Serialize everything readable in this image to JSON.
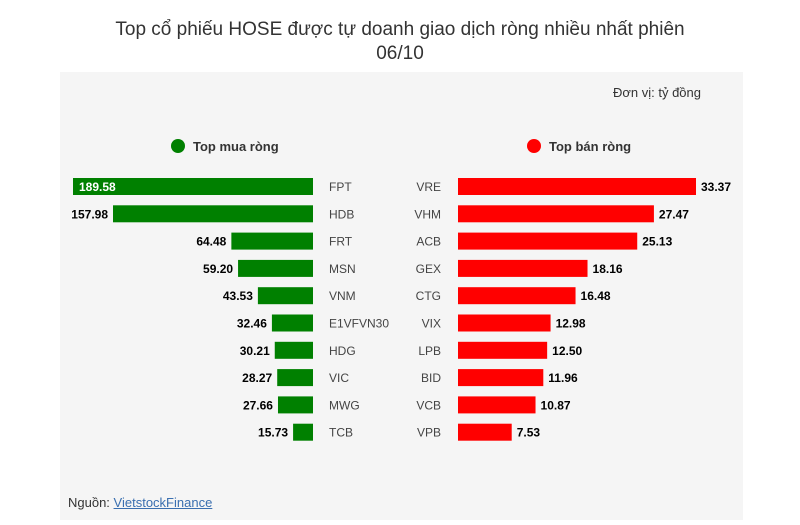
{
  "title_line1": "Top cổ phiếu HOSE được tự doanh giao dịch ròng nhiều nhất phiên",
  "title_line2": "06/10",
  "unit": "Đơn vị: tỷ đồng",
  "source_label": "Nguồn:",
  "source_link": "VietstockFinance",
  "colors": {
    "buy": "#008000",
    "sell": "#ff0000",
    "panel": "#f5f5f5"
  },
  "chart_data": {
    "type": "bar",
    "orientation": "horizontal",
    "xlim": [
      0,
      189.58
    ],
    "series": [
      {
        "name": "Top mua ròng",
        "color": "#008000",
        "categories": [
          "FPT",
          "HDB",
          "FRT",
          "MSN",
          "VNM",
          "E1VFVN30",
          "HDG",
          "VIC",
          "MWG",
          "TCB"
        ],
        "values": [
          189.58,
          157.98,
          64.48,
          59.2,
          43.53,
          32.46,
          30.21,
          28.27,
          27.66,
          15.73
        ],
        "labels": [
          "189.58",
          "157.98",
          "64.48",
          "59.20",
          "43.53",
          "32.46",
          "30.21",
          "28.27",
          "27.66",
          "15.73"
        ]
      },
      {
        "name": "Top bán ròng",
        "color": "#ff0000",
        "categories": [
          "VRE",
          "VHM",
          "ACB",
          "GEX",
          "CTG",
          "VIX",
          "LPB",
          "BID",
          "VCB",
          "VPB"
        ],
        "values": [
          33.37,
          27.47,
          25.13,
          18.16,
          16.48,
          12.98,
          12.5,
          11.96,
          10.87,
          7.53
        ],
        "labels": [
          "33.37",
          "27.47",
          "25.13",
          "18.16",
          "16.48",
          "12.98",
          "12.50",
          "11.96",
          "10.87",
          "7.53"
        ]
      }
    ]
  }
}
